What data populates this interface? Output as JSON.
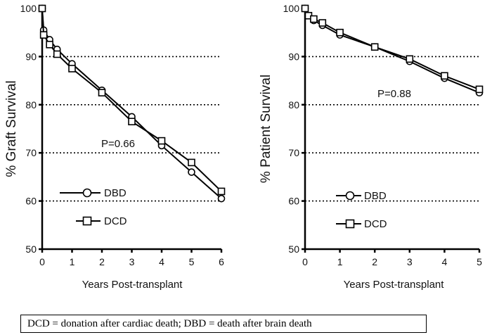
{
  "chart_data": [
    {
      "type": "line",
      "title": "",
      "xlabel": "Years Post-transplant",
      "ylabel": "% Graft Survival",
      "xlim": [
        0,
        6
      ],
      "ylim": [
        50,
        100
      ],
      "xticks": [
        "0",
        "1",
        "2",
        "3",
        "4",
        "5",
        "6"
      ],
      "yticks": [
        "50",
        "60",
        "70",
        "80",
        "90",
        "100"
      ],
      "grid": "dotted horizontal",
      "legend_position": "bottom-left",
      "annotation": "P=0.66",
      "series": [
        {
          "name": "DBD",
          "marker": "circle",
          "x": [
            0,
            0.05,
            0.25,
            0.5,
            1,
            2,
            3,
            4,
            5,
            6
          ],
          "y": [
            100,
            95.5,
            93.5,
            91.5,
            88.5,
            83,
            77.5,
            71.5,
            66,
            60.5
          ]
        },
        {
          "name": "DCD",
          "marker": "square",
          "x": [
            0,
            0.05,
            0.25,
            0.5,
            1,
            2,
            3,
            4,
            5,
            6
          ],
          "y": [
            100,
            94.5,
            92.5,
            90.5,
            87.5,
            82.5,
            76.5,
            72.5,
            68,
            62
          ]
        }
      ]
    },
    {
      "type": "line",
      "title": "",
      "xlabel": "Years Post-transplant",
      "ylabel": "% Patient Survival",
      "xlim": [
        0,
        5
      ],
      "ylim": [
        50,
        100
      ],
      "xticks": [
        "0",
        "1",
        "2",
        "3",
        "4",
        "5"
      ],
      "yticks": [
        "50",
        "60",
        "70",
        "80",
        "90",
        "100"
      ],
      "grid": "dotted horizontal",
      "legend_position": "bottom-left",
      "annotation": "P=0.88",
      "series": [
        {
          "name": "DBD",
          "marker": "circle",
          "x": [
            0,
            0.1,
            0.25,
            0.5,
            1,
            2,
            3,
            4,
            5
          ],
          "y": [
            100,
            98.5,
            97.5,
            96.5,
            94.5,
            92,
            89,
            85.5,
            82.5
          ]
        },
        {
          "name": "DCD",
          "marker": "square",
          "x": [
            0,
            0.1,
            0.25,
            0.5,
            1,
            2,
            3,
            4,
            5
          ],
          "y": [
            100,
            98.5,
            97.8,
            97,
            95,
            92,
            89.5,
            86,
            83.2
          ]
        }
      ]
    }
  ],
  "footnote": "DCD = donation after cardiac death; DBD = death after brain death"
}
